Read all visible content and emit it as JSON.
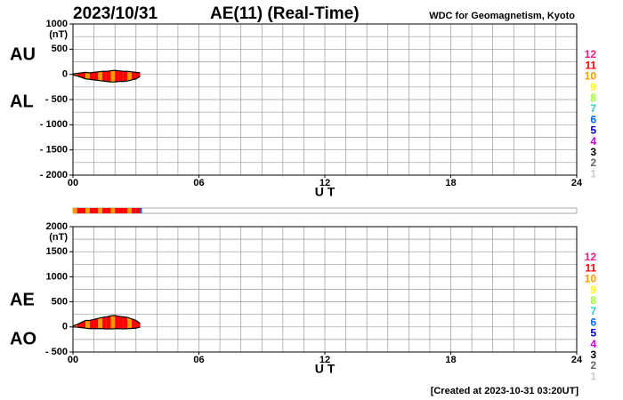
{
  "header": {
    "date": "2023/10/31",
    "title": "AE(11) (Real-Time)",
    "source": "WDC for Geomagnetism, Kyoto"
  },
  "footer": "[Created at 2023-10-31 03:20UT]",
  "color_scale": [
    {
      "value": 12,
      "color": "#e8207e"
    },
    {
      "value": 11,
      "color": "#ff0000"
    },
    {
      "value": 10,
      "color": "#ff9900"
    },
    {
      "value": 9,
      "color": "#ffff00"
    },
    {
      "value": 8,
      "color": "#99ff33"
    },
    {
      "value": 7,
      "color": "#33cccc"
    },
    {
      "value": 6,
      "color": "#0066ff"
    },
    {
      "value": 5,
      "color": "#0000bb"
    },
    {
      "value": 4,
      "color": "#cc00cc"
    },
    {
      "value": 3,
      "color": "#000000"
    },
    {
      "value": 2,
      "color": "#666666"
    },
    {
      "value": 1,
      "color": "#cccccc"
    }
  ],
  "chart_data": [
    {
      "type": "band",
      "unit": "(nT)",
      "xlabel": "U T",
      "x": [
        0,
        0.2,
        0.4,
        0.6,
        0.8,
        1.0,
        1.2,
        1.4,
        1.6,
        1.8,
        2.0,
        2.2,
        2.4,
        2.6,
        2.8,
        3.0,
        3.2
      ],
      "station_counts": [
        10,
        11,
        11,
        10,
        11,
        11,
        10,
        11,
        11,
        10,
        11,
        11,
        11,
        10,
        11,
        11,
        6
      ],
      "series": [
        {
          "name": "AU",
          "color": "#000000",
          "values": [
            10,
            20,
            30,
            40,
            30,
            40,
            50,
            60,
            60,
            70,
            80,
            70,
            60,
            60,
            50,
            40,
            30
          ]
        },
        {
          "name": "AL",
          "color": "#000000",
          "values": [
            -10,
            -30,
            -60,
            -90,
            -100,
            -110,
            -120,
            -130,
            -140,
            -150,
            -150,
            -140,
            -140,
            -130,
            -110,
            -90,
            -40
          ]
        }
      ],
      "xlim": [
        0,
        24
      ],
      "xticks": [
        {
          "value": 0,
          "label": "00"
        },
        {
          "value": 6,
          "label": "06"
        },
        12,
        18,
        24
      ],
      "xgrid": [
        0,
        1,
        2,
        3,
        4,
        5,
        6,
        7,
        8,
        9,
        10,
        11,
        12,
        13,
        14,
        15,
        16,
        17,
        18,
        19,
        20,
        21,
        22,
        23,
        24
      ],
      "ylim": [
        -2000,
        1000
      ],
      "yticks": [
        {
          "value": -2000,
          "label": "- 2000"
        },
        {
          "value": -1500,
          "label": "- 1500"
        },
        {
          "value": -1000,
          "label": "- 1000"
        },
        {
          "value": -500,
          "label": "- 500"
        },
        0,
        500,
        1000
      ],
      "ygrid": [
        -2000,
        -1750,
        -1500,
        -1250,
        -1000,
        -750,
        -500,
        -250,
        0,
        250,
        500,
        750,
        1000
      ]
    },
    {
      "type": "band",
      "unit": "(nT)",
      "xlabel": "U T",
      "x": [
        0,
        0.2,
        0.4,
        0.6,
        0.8,
        1.0,
        1.2,
        1.4,
        1.6,
        1.8,
        2.0,
        2.2,
        2.4,
        2.6,
        2.8,
        3.0,
        3.2
      ],
      "series": [
        {
          "name": "AE",
          "color": "#000000",
          "values": [
            20,
            50,
            90,
            130,
            130,
            150,
            170,
            190,
            200,
            220,
            230,
            210,
            200,
            190,
            160,
            130,
            70
          ]
        },
        {
          "name": "AO",
          "color": "#000000",
          "values": [
            0,
            -5,
            -15,
            -25,
            -35,
            -35,
            -35,
            -35,
            -40,
            -40,
            -35,
            -35,
            -40,
            -35,
            -30,
            -25,
            -5
          ]
        }
      ],
      "xlim": [
        0,
        24
      ],
      "xticks": [
        {
          "value": 0,
          "label": "00"
        },
        {
          "value": 6,
          "label": "06"
        },
        12,
        18,
        24
      ],
      "xgrid": [
        0,
        1,
        2,
        3,
        4,
        5,
        6,
        7,
        8,
        9,
        10,
        11,
        12,
        13,
        14,
        15,
        16,
        17,
        18,
        19,
        20,
        21,
        22,
        23,
        24
      ],
      "ylim": [
        -500,
        2000
      ],
      "yticks": [
        {
          "value": -500,
          "label": "- 500"
        },
        0,
        500,
        1000,
        1500,
        2000
      ],
      "ygrid": [
        -500,
        -250,
        0,
        250,
        500,
        750,
        1000,
        1250,
        1500,
        1750,
        2000
      ]
    }
  ]
}
